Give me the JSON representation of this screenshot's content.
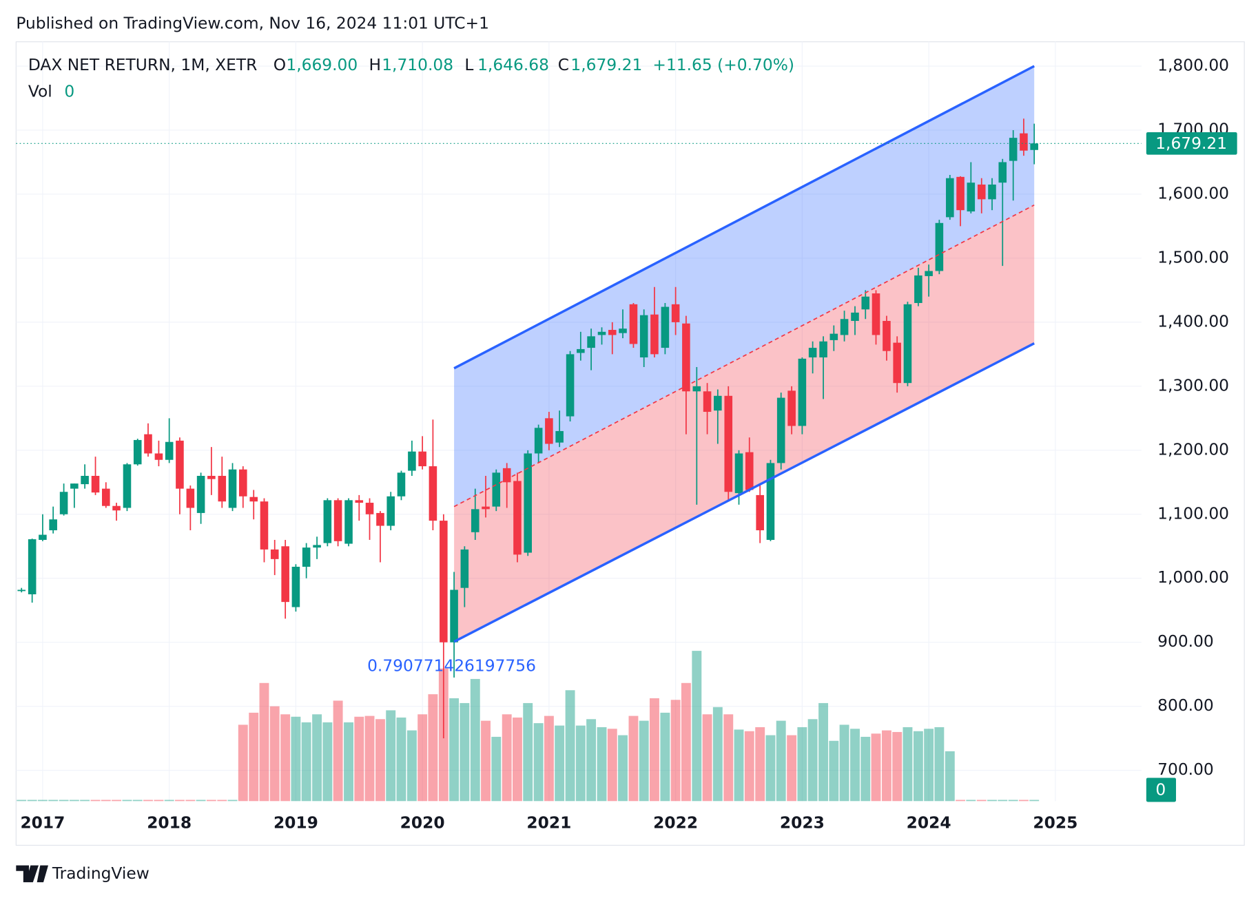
{
  "header": {
    "published": "Published on TradingView.com, Nov 16, 2024 11:01 UTC+1"
  },
  "footer": {
    "brand": "TradingView"
  },
  "chart_data": {
    "type": "candlestick",
    "legend": {
      "symbol": "DAX NET RETURN, 1M, XETR",
      "fields": [
        {
          "key": "O",
          "text": "1,669.00"
        },
        {
          "key": "H",
          "text": "1,710.08"
        },
        {
          "key": "L",
          "text": "1,646.68"
        },
        {
          "key": "C",
          "text": "1,679.21"
        }
      ],
      "change": "+11.65 (+0.70%)",
      "volume_label": "Vol",
      "volume_value": "0"
    },
    "up_color": "#089981",
    "down_color": "#f23645",
    "grid": true,
    "xlim": [
      2016.79,
      2025.68
    ],
    "xticks": [
      2017,
      2018,
      2019,
      2020,
      2021,
      2022,
      2023,
      2024,
      2025
    ],
    "ylim": [
      652,
      1838
    ],
    "yticks": [
      {
        "value": 700,
        "label": "700.00"
      },
      {
        "value": 800,
        "label": "800.00"
      },
      {
        "value": 900,
        "label": "900.00"
      },
      {
        "value": 1000,
        "label": "1,000.00"
      },
      {
        "value": 1100,
        "label": "1,100.00"
      },
      {
        "value": 1200,
        "label": "1,200.00"
      },
      {
        "value": 1300,
        "label": "1,300.00"
      },
      {
        "value": 1400,
        "label": "1,400.00"
      },
      {
        "value": 1500,
        "label": "1,500.00"
      },
      {
        "value": 1600,
        "label": "1,600.00"
      },
      {
        "value": 1700,
        "label": "1,700.00"
      },
      {
        "value": 1800,
        "label": "1,800.00"
      }
    ],
    "last_price": {
      "value": 1679.21,
      "label": "1,679.21"
    },
    "x": [
      2016.833,
      2016.917,
      2017.0,
      2017.083,
      2017.167,
      2017.25,
      2017.333,
      2017.417,
      2017.5,
      2017.583,
      2017.667,
      2017.75,
      2017.833,
      2017.917,
      2018.0,
      2018.083,
      2018.167,
      2018.25,
      2018.333,
      2018.417,
      2018.5,
      2018.583,
      2018.667,
      2018.75,
      2018.833,
      2018.917,
      2019.0,
      2019.083,
      2019.167,
      2019.25,
      2019.333,
      2019.417,
      2019.5,
      2019.583,
      2019.667,
      2019.75,
      2019.833,
      2019.917,
      2020.0,
      2020.083,
      2020.167,
      2020.25,
      2020.333,
      2020.417,
      2020.5,
      2020.583,
      2020.667,
      2020.75,
      2020.833,
      2020.917,
      2021.0,
      2021.083,
      2021.167,
      2021.25,
      2021.333,
      2021.417,
      2021.5,
      2021.583,
      2021.667,
      2021.75,
      2021.833,
      2021.917,
      2022.0,
      2022.083,
      2022.167,
      2022.25,
      2022.333,
      2022.417,
      2022.5,
      2022.583,
      2022.667,
      2022.75,
      2022.833,
      2022.917,
      2023.0,
      2023.083,
      2023.167,
      2023.25,
      2023.333,
      2023.417,
      2023.5,
      2023.583,
      2023.667,
      2023.75,
      2023.833,
      2023.917,
      2024.0,
      2024.083,
      2024.167,
      2024.25,
      2024.333,
      2024.417,
      2024.5,
      2024.583,
      2024.667,
      2024.75,
      2024.833
    ],
    "open": [
      980,
      975,
      1060,
      1075,
      1100,
      1140,
      1147,
      1160,
      1140,
      1113,
      1110,
      1178,
      1225,
      1195,
      1185,
      1215,
      1140,
      1102,
      1160,
      1160,
      1110,
      1170,
      1127,
      1120,
      1045,
      1050,
      955,
      1018,
      1048,
      1055,
      1122,
      1054,
      1122,
      1118,
      1102,
      1082,
      1128,
      1168,
      1198,
      1175,
      1090,
      900,
      985,
      1072,
      1112,
      1112,
      1172,
      1152,
      1040,
      1195,
      1250,
      1212,
      1253,
      1352,
      1360,
      1380,
      1388,
      1383,
      1428,
      1345,
      1412,
      1360,
      1428,
      1398,
      1292,
      1292,
      1262,
      1285,
      1133,
      1197,
      1130,
      1060,
      1180,
      1293,
      1238,
      1345,
      1345,
      1372,
      1380,
      1402,
      1420,
      1445,
      1402,
      1368,
      1305,
      1430,
      1472,
      1480,
      1564,
      1627,
      1573,
      1615,
      1592,
      1618,
      1652,
      1695,
      1669
    ],
    "high": [
      985,
      1062,
      1100,
      1112,
      1148,
      1148,
      1178,
      1190,
      1150,
      1118,
      1180,
      1218,
      1242,
      1215,
      1250,
      1220,
      1145,
      1165,
      1205,
      1190,
      1180,
      1175,
      1138,
      1125,
      1060,
      1060,
      1022,
      1055,
      1065,
      1125,
      1125,
      1125,
      1130,
      1125,
      1105,
      1135,
      1168,
      1215,
      1222,
      1248,
      1100,
      1010,
      1050,
      1140,
      1160,
      1170,
      1180,
      1165,
      1200,
      1240,
      1260,
      1262,
      1355,
      1385,
      1390,
      1392,
      1400,
      1420,
      1430,
      1420,
      1455,
      1430,
      1455,
      1410,
      1330,
      1305,
      1295,
      1300,
      1200,
      1220,
      1145,
      1185,
      1290,
      1300,
      1345,
      1370,
      1378,
      1395,
      1418,
      1425,
      1450,
      1450,
      1410,
      1378,
      1432,
      1485,
      1490,
      1560,
      1630,
      1628,
      1650,
      1625,
      1625,
      1655,
      1700,
      1718,
      1710.08
    ],
    "low": [
      978,
      962,
      1058,
      1070,
      1098,
      1110,
      1140,
      1130,
      1110,
      1090,
      1105,
      1176,
      1190,
      1175,
      1180,
      1100,
      1075,
      1085,
      1130,
      1110,
      1105,
      1110,
      1092,
      1025,
      1005,
      937,
      948,
      1000,
      1030,
      1050,
      1050,
      1050,
      1090,
      1060,
      1025,
      1075,
      1122,
      1160,
      1170,
      1075,
      750,
      845,
      955,
      1060,
      1095,
      1105,
      1110,
      1025,
      1035,
      1180,
      1200,
      1205,
      1245,
      1340,
      1325,
      1365,
      1350,
      1375,
      1360,
      1330,
      1345,
      1350,
      1380,
      1225,
      1115,
      1225,
      1210,
      1120,
      1115,
      1135,
      1055,
      1058,
      1170,
      1225,
      1225,
      1320,
      1280,
      1355,
      1370,
      1380,
      1405,
      1365,
      1340,
      1290,
      1300,
      1425,
      1440,
      1475,
      1560,
      1550,
      1570,
      1570,
      1575,
      1488,
      1590,
      1660,
      1646.68
    ],
    "close": [
      982,
      1061,
      1068,
      1092,
      1135,
      1148,
      1160,
      1134,
      1113,
      1106,
      1178,
      1216,
      1195,
      1185,
      1213,
      1140,
      1110,
      1160,
      1155,
      1120,
      1170,
      1128,
      1120,
      1045,
      1030,
      963,
      1018,
      1048,
      1052,
      1122,
      1058,
      1122,
      1118,
      1100,
      1082,
      1128,
      1165,
      1198,
      1175,
      1090,
      900,
      982,
      1045,
      1108,
      1108,
      1165,
      1150,
      1037,
      1195,
      1235,
      1210,
      1230,
      1350,
      1358,
      1378,
      1385,
      1380,
      1390,
      1366,
      1411,
      1350,
      1424,
      1400,
      1292,
      1300,
      1260,
      1285,
      1135,
      1195,
      1138,
      1075,
      1180,
      1282,
      1238,
      1343,
      1360,
      1370,
      1382,
      1405,
      1415,
      1440,
      1380,
      1355,
      1305,
      1428,
      1473,
      1480,
      1555,
      1625,
      1575,
      1618,
      1592,
      1615,
      1650,
      1688,
      1668,
      1679.21
    ],
    "volume": [
      0,
      0,
      0,
      0,
      0,
      0,
      0,
      0,
      0,
      0,
      0,
      0,
      0,
      0,
      0,
      0,
      0,
      0,
      0,
      0,
      0,
      95,
      110,
      147,
      118,
      108,
      105,
      98,
      108,
      98,
      125,
      98,
      105,
      106,
      102,
      113,
      104,
      88,
      108,
      133,
      165,
      128,
      122,
      152,
      100,
      80,
      108,
      104,
      122,
      97,
      106,
      94,
      138,
      94,
      102,
      92,
      90,
      82,
      106,
      100,
      128,
      110,
      126,
      147,
      187,
      108,
      117,
      108,
      89,
      87,
      92,
      82,
      100,
      82,
      92,
      102,
      122,
      75,
      95,
      90,
      80,
      84,
      88,
      86,
      92,
      87,
      90,
      92,
      62,
      0,
      0,
      0,
      0,
      0,
      0,
      0,
      0
    ],
    "channel": {
      "x": [
        2020.25,
        2024.833
      ],
      "upper": [
        1328,
        1800
      ],
      "middle": [
        1112,
        1583
      ],
      "lower": [
        901,
        1367
      ],
      "color": "#2962ff",
      "mid_color": "#f23645",
      "label": "0.790771426197756"
    }
  }
}
